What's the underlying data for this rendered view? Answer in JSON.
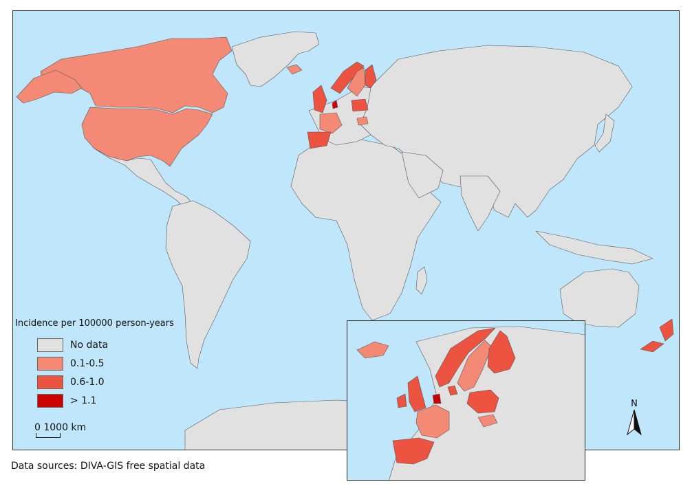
{
  "legend": {
    "title": "Incidence per 100000 person-years",
    "classes": [
      {
        "label": "No data",
        "color": "#e1e1e1"
      },
      {
        "label": "0.1-0.5",
        "color": "#f48a76"
      },
      {
        "label": "0.6-1.0",
        "color": "#ec5340"
      },
      {
        "label": "> 1.1",
        "color": "#cc0000"
      }
    ]
  },
  "scale_bar": {
    "text": "0  1000 km"
  },
  "north_arrow": {
    "label": "N"
  },
  "source_note": "Data sources: DIVA-GIS free spatial data",
  "colors": {
    "ocean": "#bfe6fb",
    "land": "#e1e1e1",
    "border": "#444444"
  },
  "regions": {
    "united_states": "0.1-0.5",
    "canada": "0.1-0.5",
    "united_kingdom": "0.6-1.0",
    "ireland": "0.6-1.0",
    "netherlands": "> 1.1",
    "france": "0.1-0.5",
    "spain": "0.6-1.0",
    "portugal": "0.6-1.0",
    "iceland": "0.1-0.5",
    "norway": "0.6-1.0",
    "sweden": "0.1-0.5",
    "finland": "0.6-1.0",
    "denmark": "0.6-1.0",
    "poland": "0.6-1.0",
    "hungary": "0.1-0.5",
    "new_zealand": "0.6-1.0"
  }
}
